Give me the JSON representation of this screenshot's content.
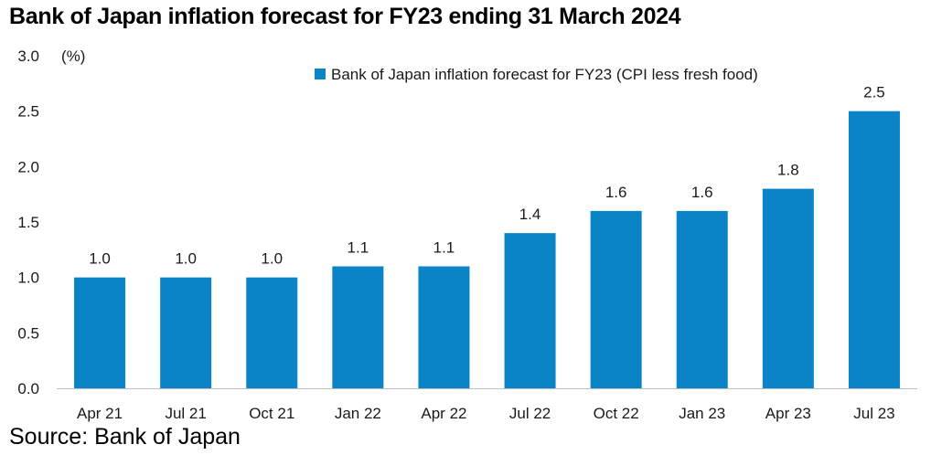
{
  "page": {
    "title": "Bank of Japan inflation forecast for FY23 ending 31 March 2024",
    "source": "Source: Bank of Japan"
  },
  "chart_data": {
    "type": "bar",
    "title": "Bank of Japan inflation forecast for FY23 ending 31 March 2024",
    "ylabel": "(%)",
    "xlabel": "",
    "ylim": [
      0,
      3.0
    ],
    "yticks": [
      "0.0",
      "0.5",
      "1.0",
      "1.5",
      "2.0",
      "2.5",
      "3.0"
    ],
    "categories": [
      "Apr 21",
      "Jul 21",
      "Oct 21",
      "Jan 22",
      "Apr 22",
      "Jul 22",
      "Oct 22",
      "Jan 23",
      "Apr 23",
      "Jul 23"
    ],
    "series": [
      {
        "name": "Bank of Japan inflation forecast for FY23 (CPI less fresh food)",
        "values": [
          1.0,
          1.0,
          1.0,
          1.1,
          1.1,
          1.4,
          1.6,
          1.6,
          1.8,
          2.5
        ],
        "labels": [
          "1.0",
          "1.0",
          "1.0",
          "1.1",
          "1.1",
          "1.4",
          "1.6",
          "1.6",
          "1.8",
          "2.5"
        ],
        "color": "#0a84c6"
      }
    ],
    "grid": false,
    "legend_position": "top-right"
  }
}
